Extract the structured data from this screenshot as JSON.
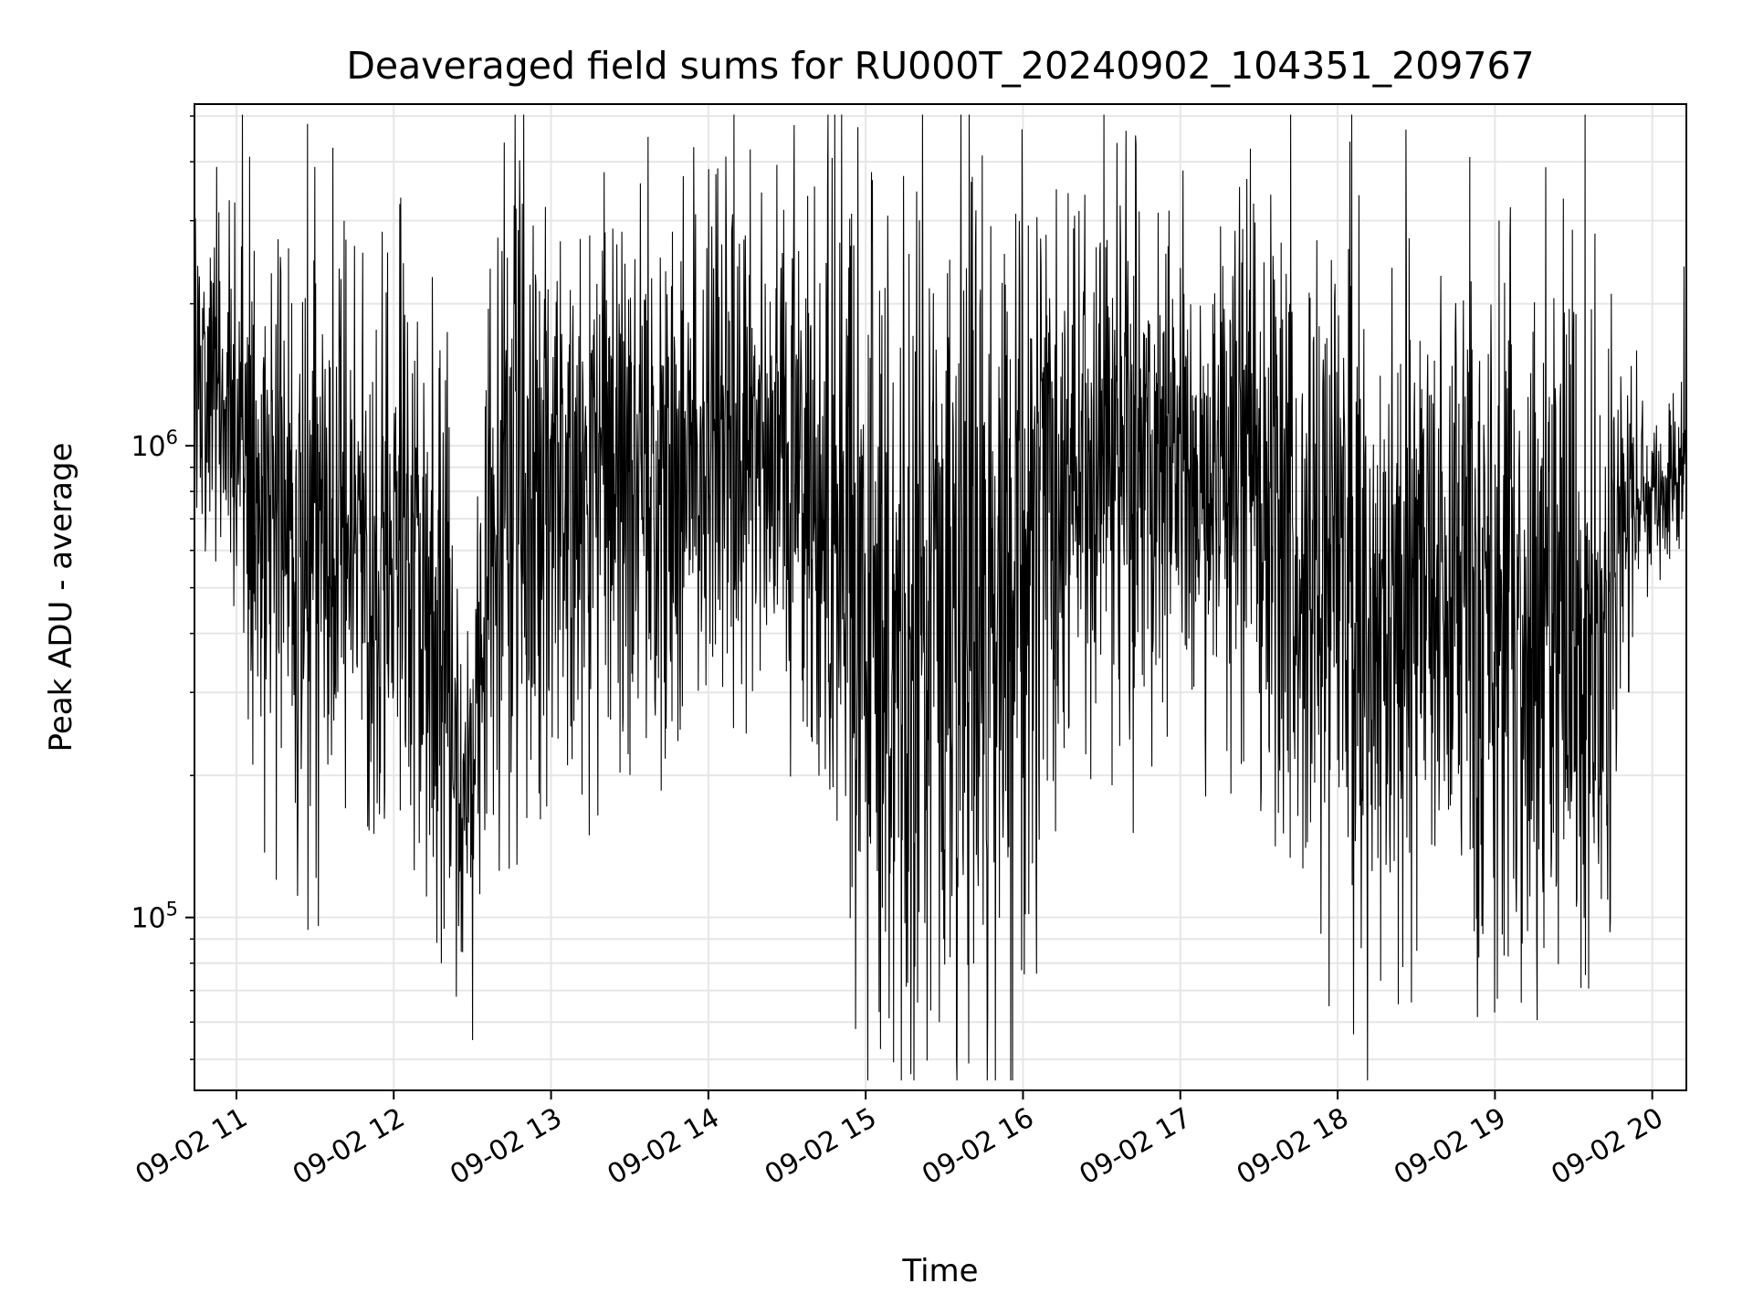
{
  "chart_data": {
    "type": "line",
    "title": "Deaveraged field sums for RU000T_20240902_104351_209767",
    "xlabel": "Time",
    "ylabel": "Peak ADU - average",
    "yscale": "log",
    "ylim": [
      43000,
      5300000
    ],
    "xlim": [
      "09-02 10:44",
      "09-02 20:13"
    ],
    "grid": true,
    "line_color": "#000000",
    "x_ticks": [
      {
        "label": "09-02 11",
        "hour": 11
      },
      {
        "label": "09-02 12",
        "hour": 12
      },
      {
        "label": "09-02 13",
        "hour": 13
      },
      {
        "label": "09-02 14",
        "hour": 14
      },
      {
        "label": "09-02 15",
        "hour": 15
      },
      {
        "label": "09-02 16",
        "hour": 16
      },
      {
        "label": "09-02 17",
        "hour": 17
      },
      {
        "label": "09-02 18",
        "hour": 18
      },
      {
        "label": "09-02 19",
        "hour": 19
      },
      {
        "label": "09-02 20",
        "hour": 20
      }
    ],
    "y_ticks": [
      {
        "base": "10",
        "exp": "5",
        "value": 100000
      },
      {
        "base": "10",
        "exp": "6",
        "value": 1000000
      }
    ],
    "series_profile": {
      "name": "",
      "time": [
        "10:44",
        "10:52",
        "11:05",
        "11:20",
        "11:35",
        "11:50",
        "12:05",
        "12:20",
        "12:25",
        "12:30",
        "12:40",
        "12:55",
        "13:10",
        "13:25",
        "13:40",
        "13:55",
        "14:10",
        "14:25",
        "14:40",
        "14:55",
        "15:10",
        "15:25",
        "15:40",
        "15:55",
        "16:10",
        "16:25",
        "16:40",
        "16:55",
        "17:10",
        "17:25",
        "17:40",
        "17:55",
        "18:10",
        "18:25",
        "18:40",
        "18:55",
        "19:10",
        "19:25",
        "19:40",
        "19:55",
        "20:10",
        "20:13"
      ],
      "median": [
        1500000,
        1400000,
        850000,
        700000,
        650000,
        600000,
        550000,
        400000,
        170000,
        200000,
        800000,
        900000,
        800000,
        850000,
        750000,
        900000,
        1000000,
        950000,
        750000,
        500000,
        350000,
        450000,
        500000,
        450000,
        750000,
        900000,
        850000,
        900000,
        850000,
        800000,
        650000,
        500000,
        450000,
        550000,
        600000,
        500000,
        350000,
        400000,
        350000,
        750000,
        850000,
        900000
      ],
      "spread": [
        0.35,
        0.35,
        0.55,
        0.6,
        0.6,
        0.55,
        0.55,
        0.6,
        0.35,
        0.4,
        0.65,
        0.6,
        0.55,
        0.6,
        0.6,
        0.55,
        0.5,
        0.5,
        0.6,
        0.8,
        0.85,
        0.85,
        0.8,
        0.85,
        0.6,
        0.55,
        0.55,
        0.5,
        0.5,
        0.55,
        0.65,
        0.75,
        0.75,
        0.7,
        0.65,
        0.75,
        0.8,
        0.8,
        0.7,
        0.2,
        0.15,
        0.2
      ]
    },
    "series_extremes": [
      {
        "time": "11:05",
        "value": 4100000
      },
      {
        "time": "11:41",
        "value": 3000000
      },
      {
        "time": "13:34",
        "value": 3600000
      },
      {
        "time": "16:39",
        "value": 2500000
      },
      {
        "time": "20:12",
        "value": 2400000
      },
      {
        "time": "12:18",
        "value": 80000
      },
      {
        "time": "14:56",
        "value": 58000
      },
      {
        "time": "15:05",
        "value": 63000
      },
      {
        "time": "15:28",
        "value": 60000
      },
      {
        "time": "19:10",
        "value": 66000
      },
      {
        "time": "16:05",
        "value": 76000
      }
    ]
  }
}
